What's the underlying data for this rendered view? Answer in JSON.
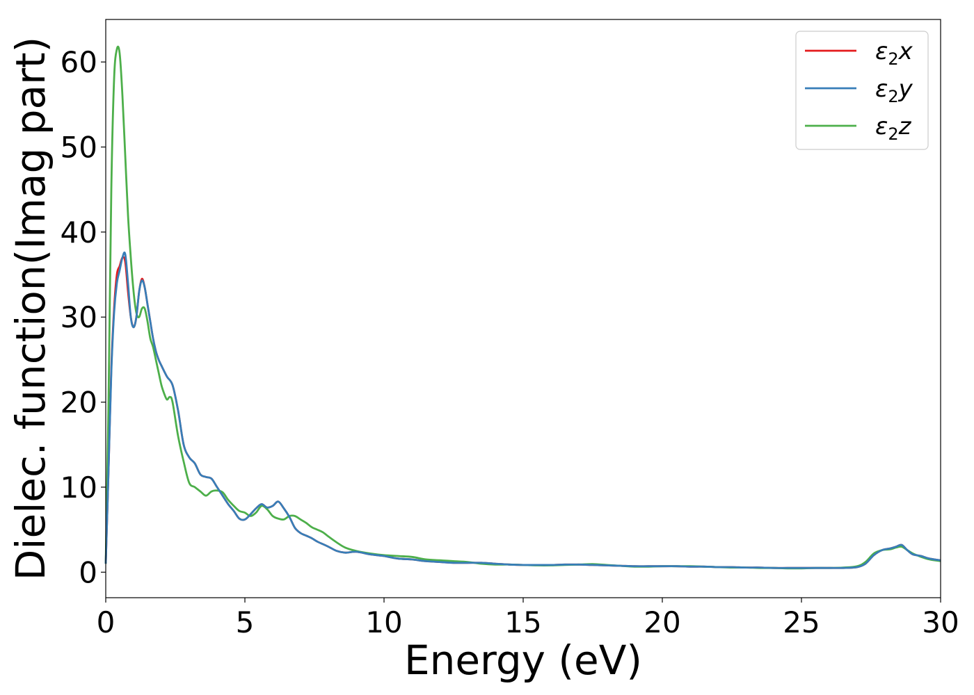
{
  "chart_data": {
    "type": "line",
    "title": "",
    "xlabel": "Energy (eV)",
    "ylabel": "Dielec. function(Imag part)",
    "xlim": [
      0,
      30
    ],
    "ylim": [
      -3,
      65
    ],
    "xticks": [
      0,
      5,
      10,
      15,
      20,
      25,
      30
    ],
    "yticks": [
      0,
      10,
      20,
      30,
      40,
      50,
      60
    ],
    "grid": false,
    "legend_position": "top-right",
    "series": [
      {
        "name_base": "ε",
        "name_sub": "2",
        "name_suffix": "x",
        "color": "#e41a1c",
        "x": [
          0,
          0.1,
          0.2,
          0.3,
          0.4,
          0.5,
          0.6,
          0.7,
          0.8,
          0.9,
          1.0,
          1.1,
          1.2,
          1.3,
          1.4,
          1.5,
          1.6,
          1.7,
          1.8,
          1.9,
          2.0,
          2.2,
          2.4,
          2.6,
          2.8,
          3.0,
          3.2,
          3.4,
          3.6,
          3.8,
          4.0,
          4.2,
          4.4,
          4.6,
          4.8,
          5.0,
          5.2,
          5.4,
          5.6,
          5.8,
          6.0,
          6.2,
          6.4,
          6.6,
          6.8,
          7.0,
          7.2,
          7.4,
          7.6,
          7.8,
          8.0,
          8.3,
          8.6,
          9.0,
          9.5,
          10.0,
          10.5,
          11.0,
          11.5,
          12.0,
          12.5,
          13.0,
          13.5,
          14.0,
          14.5,
          15.0,
          15.5,
          16.0,
          16.5,
          17.0,
          17.5,
          18.0,
          18.5,
          19.0,
          19.5,
          20.0,
          20.5,
          21.0,
          21.5,
          22.0,
          22.5,
          23.0,
          23.5,
          24.0,
          24.5,
          25.0,
          25.5,
          26.0,
          26.5,
          27.0,
          27.3,
          27.6,
          27.9,
          28.2,
          28.4,
          28.6,
          28.8,
          29.0,
          29.3,
          29.6,
          30.0
        ],
        "y": [
          1.0,
          12.0,
          24.0,
          31.0,
          35.0,
          36.0,
          37.0,
          36.5,
          33.0,
          30.0,
          28.8,
          30.0,
          33.0,
          34.5,
          33.5,
          31.5,
          29.5,
          27.5,
          26.0,
          25.0,
          24.3,
          23.0,
          22.0,
          19.0,
          15.0,
          13.5,
          12.8,
          11.5,
          11.2,
          11.0,
          10.0,
          9.0,
          8.0,
          7.2,
          6.3,
          6.2,
          6.8,
          7.5,
          8.0,
          7.6,
          7.8,
          8.3,
          7.5,
          6.5,
          5.2,
          4.6,
          4.3,
          4.0,
          3.6,
          3.3,
          3.0,
          2.5,
          2.3,
          2.4,
          2.1,
          1.9,
          1.6,
          1.5,
          1.3,
          1.2,
          1.1,
          1.1,
          1.1,
          1.0,
          0.9,
          0.85,
          0.85,
          0.85,
          0.9,
          0.9,
          0.85,
          0.8,
          0.75,
          0.7,
          0.7,
          0.7,
          0.7,
          0.65,
          0.65,
          0.6,
          0.6,
          0.55,
          0.55,
          0.5,
          0.5,
          0.5,
          0.5,
          0.5,
          0.5,
          0.6,
          1.0,
          2.0,
          2.6,
          2.8,
          3.0,
          3.2,
          2.6,
          2.1,
          1.9,
          1.6,
          1.4
        ]
      },
      {
        "name_base": "ε",
        "name_sub": "2",
        "name_suffix": "y",
        "color": "#377eb8",
        "x": [
          0,
          0.1,
          0.2,
          0.3,
          0.4,
          0.5,
          0.6,
          0.7,
          0.8,
          0.9,
          1.0,
          1.1,
          1.2,
          1.3,
          1.4,
          1.5,
          1.6,
          1.7,
          1.8,
          1.9,
          2.0,
          2.2,
          2.4,
          2.6,
          2.8,
          3.0,
          3.2,
          3.4,
          3.6,
          3.8,
          4.0,
          4.2,
          4.4,
          4.6,
          4.8,
          5.0,
          5.2,
          5.4,
          5.6,
          5.8,
          6.0,
          6.2,
          6.4,
          6.6,
          6.8,
          7.0,
          7.2,
          7.4,
          7.6,
          7.8,
          8.0,
          8.3,
          8.6,
          9.0,
          9.5,
          10.0,
          10.5,
          11.0,
          11.5,
          12.0,
          12.5,
          13.0,
          13.5,
          14.0,
          14.5,
          15.0,
          15.5,
          16.0,
          16.5,
          17.0,
          17.5,
          18.0,
          18.5,
          19.0,
          19.5,
          20.0,
          20.5,
          21.0,
          21.5,
          22.0,
          22.5,
          23.0,
          23.5,
          24.0,
          24.5,
          25.0,
          25.5,
          26.0,
          26.5,
          27.0,
          27.3,
          27.6,
          27.9,
          28.2,
          28.4,
          28.6,
          28.8,
          29.0,
          29.3,
          29.6,
          30.0
        ],
        "y": [
          1.0,
          12.0,
          23.5,
          30.5,
          34.0,
          35.5,
          37.0,
          37.4,
          34.0,
          30.0,
          28.8,
          30.0,
          33.0,
          34.3,
          33.5,
          31.5,
          29.5,
          27.5,
          26.0,
          25.0,
          24.3,
          23.0,
          22.0,
          19.0,
          15.0,
          13.5,
          12.8,
          11.5,
          11.2,
          11.0,
          10.0,
          9.0,
          8.0,
          7.2,
          6.3,
          6.2,
          6.8,
          7.5,
          8.0,
          7.6,
          7.8,
          8.3,
          7.5,
          6.5,
          5.2,
          4.6,
          4.3,
          4.0,
          3.6,
          3.3,
          3.0,
          2.5,
          2.3,
          2.4,
          2.1,
          1.9,
          1.6,
          1.5,
          1.3,
          1.2,
          1.1,
          1.1,
          1.1,
          1.0,
          0.9,
          0.85,
          0.85,
          0.85,
          0.9,
          0.9,
          0.85,
          0.8,
          0.75,
          0.7,
          0.7,
          0.7,
          0.7,
          0.65,
          0.65,
          0.6,
          0.6,
          0.55,
          0.55,
          0.5,
          0.5,
          0.5,
          0.5,
          0.5,
          0.5,
          0.6,
          1.0,
          2.0,
          2.6,
          2.8,
          3.0,
          3.2,
          2.6,
          2.1,
          1.9,
          1.6,
          1.4
        ]
      },
      {
        "name_base": "ε",
        "name_sub": "2",
        "name_suffix": "z",
        "color": "#4daf4a",
        "x": [
          0,
          0.1,
          0.2,
          0.3,
          0.4,
          0.5,
          0.6,
          0.7,
          0.8,
          0.9,
          1.0,
          1.1,
          1.2,
          1.3,
          1.4,
          1.5,
          1.6,
          1.7,
          1.8,
          1.9,
          2.0,
          2.1,
          2.2,
          2.3,
          2.4,
          2.6,
          2.8,
          3.0,
          3.2,
          3.4,
          3.6,
          3.8,
          4.0,
          4.2,
          4.4,
          4.6,
          4.8,
          5.0,
          5.2,
          5.4,
          5.6,
          5.8,
          6.0,
          6.2,
          6.4,
          6.6,
          6.8,
          7.0,
          7.2,
          7.4,
          7.6,
          7.8,
          8.0,
          8.3,
          8.6,
          9.0,
          9.5,
          10.0,
          10.5,
          11.0,
          11.5,
          12.0,
          12.5,
          13.0,
          13.5,
          14.0,
          14.5,
          15.0,
          15.5,
          16.0,
          16.5,
          17.0,
          17.5,
          18.0,
          18.5,
          19.0,
          19.5,
          20.0,
          20.5,
          21.0,
          21.5,
          22.0,
          22.5,
          23.0,
          23.5,
          24.0,
          24.5,
          25.0,
          25.5,
          26.0,
          26.5,
          27.0,
          27.3,
          27.6,
          27.9,
          28.2,
          28.4,
          28.6,
          28.8,
          29.0,
          29.3,
          29.6,
          30.0
        ],
        "y": [
          1.0,
          20.0,
          45.0,
          58.0,
          61.5,
          61.0,
          56.0,
          49.0,
          42.0,
          37.0,
          33.0,
          30.5,
          30.0,
          31.0,
          31.0,
          29.5,
          27.5,
          26.5,
          25.0,
          23.5,
          22.0,
          21.0,
          20.3,
          20.6,
          20.0,
          16.0,
          13.0,
          10.5,
          10.0,
          9.5,
          9.0,
          9.5,
          9.6,
          9.4,
          8.5,
          7.8,
          7.2,
          7.0,
          6.6,
          7.0,
          7.8,
          7.4,
          6.6,
          6.3,
          6.2,
          6.6,
          6.6,
          6.2,
          5.8,
          5.3,
          5.0,
          4.7,
          4.2,
          3.5,
          2.9,
          2.5,
          2.2,
          2.0,
          1.9,
          1.8,
          1.5,
          1.4,
          1.3,
          1.2,
          1.0,
          0.9,
          0.9,
          0.85,
          0.8,
          0.8,
          0.85,
          0.9,
          0.95,
          0.85,
          0.75,
          0.65,
          0.65,
          0.7,
          0.7,
          0.7,
          0.65,
          0.6,
          0.55,
          0.55,
          0.5,
          0.5,
          0.45,
          0.45,
          0.5,
          0.5,
          0.55,
          0.7,
          1.2,
          2.2,
          2.6,
          2.7,
          2.9,
          3.0,
          2.6,
          2.2,
          1.8,
          1.5,
          1.3
        ]
      }
    ]
  }
}
